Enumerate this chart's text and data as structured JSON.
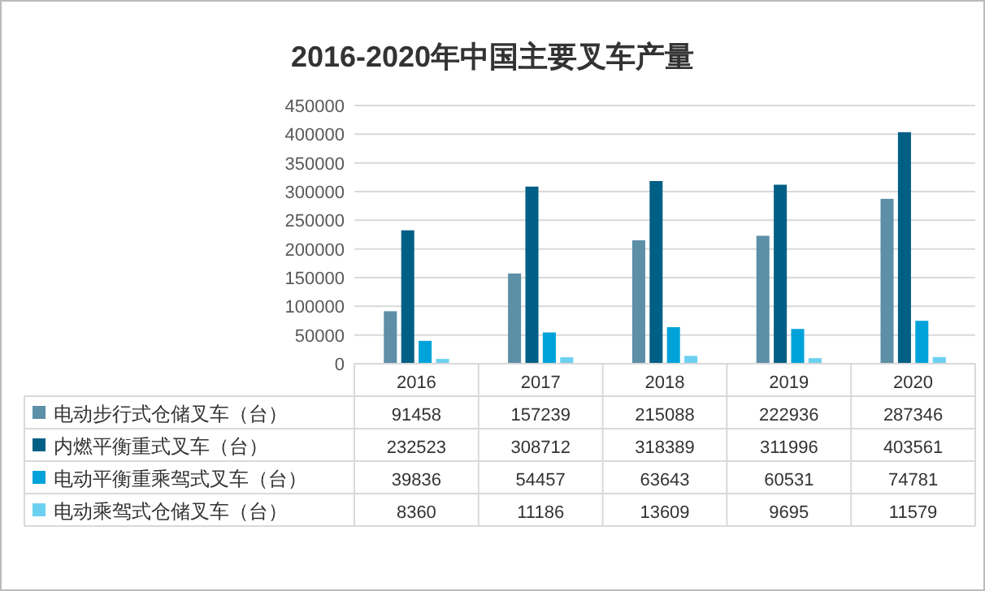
{
  "chart_data": {
    "type": "bar",
    "title": "2016-2020年中国主要叉车产量",
    "categories": [
      "2016",
      "2017",
      "2018",
      "2019",
      "2020"
    ],
    "series": [
      {
        "name": "电动步行式仓储叉车（台）",
        "color": "#5d8fa7",
        "values": [
          91458,
          157239,
          215088,
          222936,
          287346
        ]
      },
      {
        "name": "内燃平衡重式叉车（台）",
        "color": "#005f85",
        "values": [
          232523,
          308712,
          318389,
          311996,
          403561
        ]
      },
      {
        "name": "电动平衡重乘驾式叉车（台）",
        "color": "#00a3d9",
        "values": [
          39836,
          54457,
          63643,
          60531,
          74781
        ]
      },
      {
        "name": "电动乘驾式仓储叉车（台）",
        "color": "#6cd0f0",
        "values": [
          8360,
          11186,
          13609,
          9695,
          11579
        ]
      }
    ],
    "ylim": [
      0,
      450000
    ],
    "yticks": [
      0,
      50000,
      100000,
      150000,
      200000,
      250000,
      300000,
      350000,
      400000,
      450000
    ],
    "grid": "y",
    "legend": "bottom",
    "data_labels": true
  }
}
